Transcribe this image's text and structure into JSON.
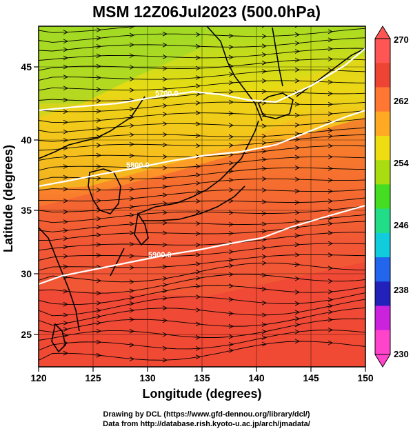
{
  "title": "MSM 12Z06Jul2023 (500.0hPa)",
  "x_axis": {
    "label": "Longitude (degrees)",
    "ticks": [
      120,
      125,
      130,
      135,
      140,
      145,
      150
    ],
    "range": [
      120,
      150
    ]
  },
  "y_axis": {
    "label": "Latitude  (degrees)",
    "ticks": [
      25,
      30,
      35,
      40,
      45
    ],
    "range": [
      22.5,
      47.5
    ]
  },
  "colorbar": {
    "ticks": [
      "270",
      "262",
      "254",
      "246",
      "238",
      "230"
    ],
    "colors": [
      "#ff44cc",
      "#cc22dd",
      "#2222bb",
      "#2266ee",
      "#11ccdd",
      "#22dd88",
      "#44dd22",
      "#aadd11",
      "#eedd11",
      "#ffaa22",
      "#ff7733",
      "#ee4433",
      "#ff5555"
    ]
  },
  "contours": [
    {
      "label": "5900.0"
    },
    {
      "label": "5800.0"
    },
    {
      "label": "5700.0"
    }
  ],
  "field_colors": {
    "north": "#aadd22",
    "mid": "#ffaa22",
    "south": "#ee4433"
  },
  "credits": {
    "line1": "Drawing by DCL (https://www.gfd-dennou.org/library/dcl/)",
    "line2": "Data from http://database.rish.kyoto-u.ac.jp/arch/jmadata/"
  }
}
